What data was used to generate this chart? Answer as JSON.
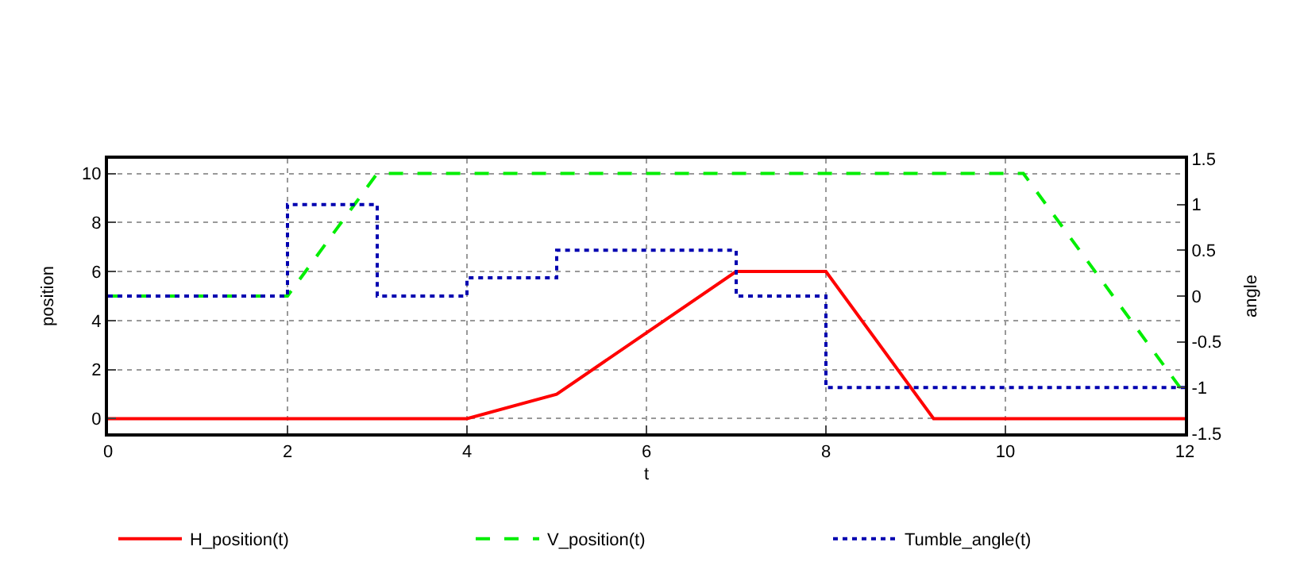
{
  "chart_data": {
    "type": "line",
    "xlabel": "t",
    "ylabel": "position",
    "y2label": "angle",
    "xlim": [
      0,
      12
    ],
    "xticks": [
      0,
      2,
      4,
      6,
      8,
      10,
      12
    ],
    "ylim": [
      -0.6,
      10.6
    ],
    "yticks": [
      0,
      2,
      4,
      6,
      8,
      10
    ],
    "y2lim": [
      -1.5,
      1.5
    ],
    "y2ticks": [
      -1.5,
      -1,
      -0.5,
      0,
      0.5,
      1,
      1.5
    ],
    "grid": true,
    "legend": "bottom",
    "marker": "none",
    "series": [
      {
        "name": "H_position(t)",
        "color": "#ff0000",
        "line_style": "solid",
        "x": [
          0,
          4,
          5,
          7,
          8,
          9.2,
          12
        ],
        "values": [
          0,
          0,
          1,
          6,
          6,
          0,
          0
        ]
      },
      {
        "name": "V_position(t)",
        "color": "#00ee00",
        "line_style": "dashed",
        "x": [
          0,
          2,
          3,
          10.2,
          12
        ],
        "values": [
          5,
          5,
          10,
          10,
          1
        ]
      },
      {
        "name": "Tumble_angle(t)",
        "color": "#0000b0",
        "line_style": "dotted",
        "type": "step",
        "axis": "y2",
        "x": [
          0,
          2,
          3,
          4,
          5,
          7,
          8,
          12
        ],
        "values": [
          0,
          1,
          0,
          0.2,
          0.5,
          0,
          -1,
          -1
        ]
      }
    ]
  }
}
